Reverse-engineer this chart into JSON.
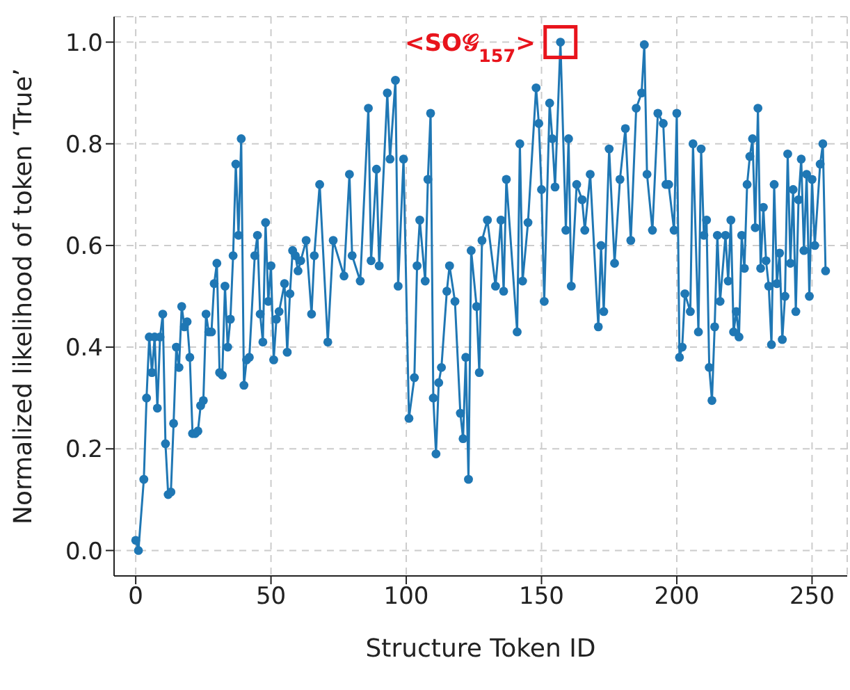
{
  "chart_data": {
    "type": "line",
    "xlabel": "Structure Token ID",
    "ylabel": "Normalized likelihood of token ‘True’",
    "x": [
      0,
      1,
      3,
      4,
      5,
      6,
      7,
      8,
      9,
      10,
      11,
      12,
      13,
      14,
      15,
      16,
      17,
      18,
      19,
      20,
      21,
      22,
      23,
      24,
      25,
      26,
      27,
      28,
      29,
      30,
      31,
      32,
      33,
      34,
      35,
      36,
      37,
      38,
      39,
      40,
      41,
      42,
      44,
      45,
      46,
      47,
      48,
      49,
      50,
      51,
      52,
      53,
      55,
      56,
      57,
      58,
      59,
      60,
      61,
      63,
      65,
      66,
      68,
      71,
      73,
      77,
      79,
      80,
      83,
      86,
      87,
      89,
      90,
      93,
      94,
      96,
      97,
      99,
      101,
      103,
      104,
      105,
      107,
      108,
      109,
      110,
      111,
      112,
      113,
      115,
      116,
      118,
      120,
      121,
      122,
      123,
      124,
      126,
      127,
      128,
      130,
      133,
      135,
      136,
      137,
      141,
      142,
      143,
      145,
      148,
      149,
      150,
      151,
      153,
      154,
      155,
      157,
      159,
      160,
      161,
      163,
      165,
      166,
      168,
      171,
      172,
      173,
      175,
      177,
      179,
      181,
      183,
      185,
      187,
      188,
      189,
      191,
      193,
      195,
      196,
      197,
      199,
      200,
      201,
      202,
      203,
      205,
      206,
      208,
      209,
      210,
      211,
      212,
      213,
      214,
      215,
      216,
      218,
      219,
      220,
      221,
      222,
      223,
      224,
      225,
      226,
      227,
      228,
      229,
      230,
      231,
      232,
      233,
      234,
      235,
      236,
      237,
      238,
      239,
      240,
      241,
      242,
      243,
      244,
      245,
      246,
      247,
      248,
      249,
      250,
      251,
      253,
      254,
      255
    ],
    "series": [
      {
        "color": "#1f77b4",
        "values": [
          0.02,
          0.0,
          0.14,
          0.3,
          0.42,
          0.35,
          0.42,
          0.28,
          0.42,
          0.465,
          0.21,
          0.11,
          0.115,
          0.25,
          0.4,
          0.36,
          0.48,
          0.44,
          0.45,
          0.38,
          0.23,
          0.23,
          0.235,
          0.285,
          0.295,
          0.465,
          0.43,
          0.43,
          0.525,
          0.565,
          0.35,
          0.345,
          0.52,
          0.4,
          0.455,
          0.58,
          0.76,
          0.62,
          0.81,
          0.325,
          0.375,
          0.38,
          0.58,
          0.62,
          0.465,
          0.41,
          0.645,
          0.49,
          0.56,
          0.375,
          0.455,
          0.47,
          0.525,
          0.39,
          0.505,
          0.59,
          0.58,
          0.55,
          0.57,
          0.61,
          0.465,
          0.58,
          0.72,
          0.41,
          0.61,
          0.54,
          0.74,
          0.58,
          0.53,
          0.87,
          0.57,
          0.75,
          0.56,
          0.9,
          0.77,
          0.925,
          0.52,
          0.77,
          0.26,
          0.34,
          0.56,
          0.65,
          0.53,
          0.73,
          0.86,
          0.3,
          0.19,
          0.33,
          0.36,
          0.51,
          0.56,
          0.49,
          0.27,
          0.22,
          0.38,
          0.14,
          0.59,
          0.48,
          0.35,
          0.61,
          0.65,
          0.52,
          0.65,
          0.51,
          0.73,
          0.43,
          0.8,
          0.53,
          0.645,
          0.91,
          0.84,
          0.71,
          0.49,
          0.88,
          0.81,
          0.715,
          1.0,
          0.63,
          0.81,
          0.52,
          0.72,
          0.69,
          0.63,
          0.74,
          0.44,
          0.6,
          0.47,
          0.79,
          0.565,
          0.73,
          0.83,
          0.61,
          0.87,
          0.9,
          0.995,
          0.74,
          0.63,
          0.86,
          0.84,
          0.72,
          0.72,
          0.63,
          0.86,
          0.38,
          0.4,
          0.505,
          0.47,
          0.8,
          0.43,
          0.79,
          0.62,
          0.65,
          0.36,
          0.295,
          0.44,
          0.62,
          0.49,
          0.62,
          0.53,
          0.65,
          0.43,
          0.47,
          0.42,
          0.62,
          0.555,
          0.72,
          0.775,
          0.81,
          0.635,
          0.87,
          0.555,
          0.675,
          0.57,
          0.52,
          0.405,
          0.72,
          0.525,
          0.585,
          0.415,
          0.5,
          0.78,
          0.565,
          0.71,
          0.47,
          0.69,
          0.77,
          0.59,
          0.74,
          0.5,
          0.73,
          0.6,
          0.76,
          0.8,
          0.55
        ]
      }
    ],
    "xlim": [
      -8,
      263
    ],
    "xticks": [
      0,
      50,
      100,
      150,
      200,
      250
    ],
    "ylim": [
      -0.05,
      1.05
    ],
    "yticks": [
      {
        "value": 0,
        "label": "0.0"
      },
      {
        "value": 0.2,
        "label": "0.2"
      },
      {
        "value": 0.4,
        "label": "0.4"
      },
      {
        "value": 0.6,
        "label": "0.6"
      },
      {
        "value": 0.8,
        "label": "0.8"
      },
      {
        "value": 1.0,
        "label": "1.0"
      }
    ],
    "grid": true,
    "marker": "circle",
    "line_style": "solid",
    "annotations": [
      {
        "text": "<SO𝒢$_{157}$>",
        "x": 157,
        "y": 1.0
      }
    ]
  }
}
